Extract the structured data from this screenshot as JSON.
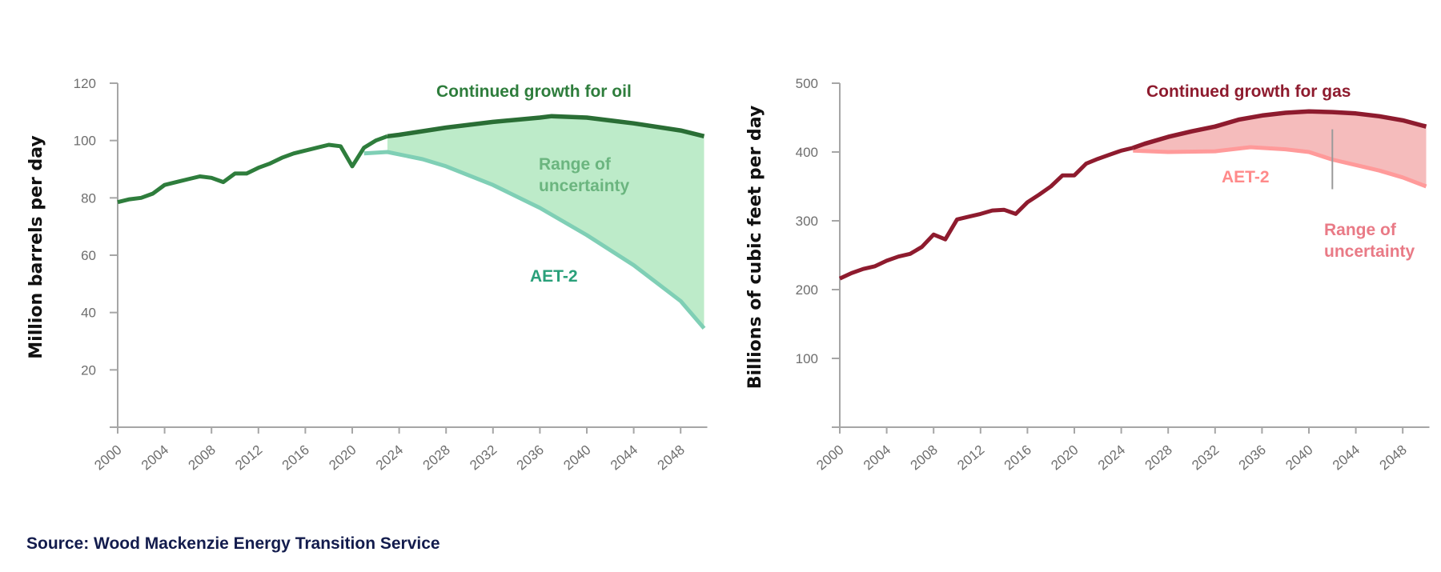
{
  "source": "Source: Wood Mackenzie Energy Transition Service",
  "chart_data": [
    {
      "type": "line",
      "id": "oil",
      "title": "",
      "xlabel": "",
      "ylabel": "Million barrels per day",
      "xlim": [
        2000,
        2050
      ],
      "ylim": [
        0,
        120
      ],
      "grid": false,
      "x_ticks": [
        2000,
        2004,
        2008,
        2012,
        2016,
        2020,
        2024,
        2028,
        2032,
        2036,
        2040,
        2044,
        2048
      ],
      "y_ticks": [
        20,
        40,
        60,
        80,
        100,
        120
      ],
      "colors": {
        "historic": "#2e7d3c",
        "growth": "#2a6e35",
        "aet2": "#7fcfb5",
        "band": "#bdebc9",
        "range_text": "#6bb57f",
        "aet2_text": "#2aa07a",
        "growth_text": "#2e7d3c"
      },
      "annotations": {
        "growth": "Continued growth for oil",
        "range": [
          "Range of",
          "uncertainty"
        ],
        "aet2": "AET-2"
      },
      "series": [
        {
          "name": "Historic",
          "x": [
            2000,
            2001,
            2002,
            2003,
            2004,
            2005,
            2006,
            2007,
            2008,
            2009,
            2010,
            2011,
            2012,
            2013,
            2014,
            2015,
            2016,
            2017,
            2018,
            2019,
            2020,
            2021,
            2022,
            2023
          ],
          "values": [
            78.5,
            79.5,
            80,
            81.5,
            84.5,
            85.5,
            86.5,
            87.5,
            87,
            85.5,
            88.5,
            88.5,
            90.5,
            92,
            94,
            95.5,
            96.5,
            97.5,
            98.5,
            98,
            91,
            97.5,
            100,
            101.5
          ]
        },
        {
          "name": "Continued growth for oil",
          "x": [
            2023,
            2024,
            2028,
            2032,
            2036,
            2037,
            2040,
            2044,
            2048,
            2050
          ],
          "values": [
            101.5,
            102,
            104.5,
            106.5,
            108,
            108.5,
            108,
            106,
            103.5,
            101.5
          ]
        },
        {
          "name": "AET-2",
          "x": [
            2021,
            2023,
            2026,
            2028,
            2032,
            2036,
            2040,
            2044,
            2048,
            2050
          ],
          "values": [
            95.5,
            96,
            93.5,
            91,
            84.5,
            76.5,
            67,
            56.5,
            44,
            34.5
          ]
        }
      ]
    },
    {
      "type": "line",
      "id": "gas",
      "title": "",
      "xlabel": "",
      "ylabel": "Billions of cubic feet per day",
      "xlim": [
        2000,
        2050
      ],
      "ylim": [
        0,
        500
      ],
      "grid": false,
      "x_ticks": [
        2000,
        2004,
        2008,
        2012,
        2016,
        2020,
        2024,
        2028,
        2032,
        2036,
        2040,
        2044,
        2048
      ],
      "y_ticks": [
        100,
        200,
        300,
        400,
        500
      ],
      "colors": {
        "historic": "#8e1b2e",
        "growth": "#8e1b2e",
        "aet2": "#ff9a9a",
        "band": "#f5bcbc",
        "range_text": "#e97a86",
        "aet2_text": "#ff8a8a",
        "growth_text": "#8e1b2e",
        "pointer": "#9a9a9a"
      },
      "annotations": {
        "growth": "Continued growth for gas",
        "range": [
          "Range of",
          "uncertainty"
        ],
        "aet2": "AET-2"
      },
      "series": [
        {
          "name": "Historic",
          "x": [
            2000,
            2001,
            2002,
            2003,
            2004,
            2005,
            2006,
            2007,
            2008,
            2009,
            2010,
            2011,
            2012,
            2013,
            2014,
            2015,
            2016,
            2017,
            2018,
            2019,
            2020,
            2021,
            2022,
            2023,
            2024,
            2025
          ],
          "values": [
            216,
            224,
            230,
            234,
            242,
            248,
            252,
            262,
            280,
            273,
            302,
            306,
            310,
            315,
            316,
            310,
            327,
            338,
            350,
            366,
            366,
            383,
            390,
            396,
            402,
            406
          ]
        },
        {
          "name": "Continued growth for gas",
          "x": [
            2025,
            2026,
            2028,
            2030,
            2032,
            2034,
            2036,
            2038,
            2040,
            2042,
            2044,
            2046,
            2048,
            2050
          ],
          "values": [
            406,
            412,
            422,
            430,
            437,
            447,
            453,
            457,
            459,
            458,
            456,
            452,
            446,
            437
          ]
        },
        {
          "name": "AET-2",
          "x": [
            2025,
            2028,
            2032,
            2035,
            2038,
            2040,
            2042,
            2044,
            2046,
            2048,
            2050
          ],
          "values": [
            402,
            400,
            401,
            407,
            404,
            400,
            389,
            381,
            373,
            363,
            350
          ]
        }
      ]
    }
  ]
}
